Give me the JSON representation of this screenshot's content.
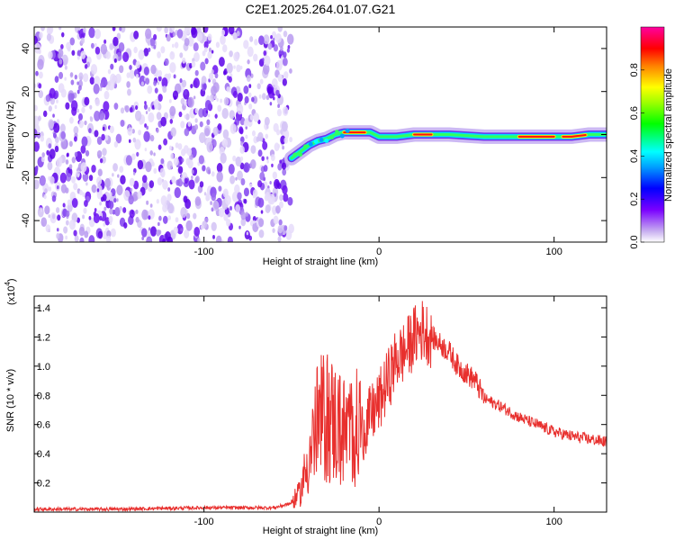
{
  "title": "C2E1.2025.264.01.07.G21",
  "chart_data": [
    {
      "type": "heatmap",
      "xlabel": "Height of straight line (km)",
      "ylabel": "Frequency (Hz)",
      "xlim": [
        -197,
        130
      ],
      "ylim": [
        -50,
        50
      ],
      "xticks": [
        -100,
        0,
        100
      ],
      "xtick_labels": [
        "-100",
        "0",
        "100"
      ],
      "yticks": [
        -40,
        -20,
        0,
        20,
        40
      ],
      "ytick_labels": [
        "-40",
        "-20",
        "0",
        "20",
        "40"
      ],
      "noise_region_x": [
        -197,
        -50
      ],
      "ridge": {
        "x": [
          -50,
          -45,
          -40,
          -35,
          -30,
          -25,
          -20,
          -15,
          -10,
          -5,
          0,
          5,
          10,
          20,
          40,
          60,
          80,
          100,
          110,
          120,
          130
        ],
        "freq": [
          -11,
          -8,
          -5,
          -3,
          -2,
          0,
          1,
          1,
          1,
          1,
          -1,
          -1,
          -1,
          0,
          0,
          -1,
          -1,
          -1,
          -1,
          0,
          0
        ]
      },
      "colorbar": {
        "label": "Normalized spectral amplitude",
        "range": [
          0,
          1
        ],
        "ticks": [
          0.0,
          0.2,
          0.4,
          0.6,
          0.8
        ],
        "tick_labels": [
          "0.0",
          "0.2",
          "0.4",
          "0.6",
          "0.8"
        ],
        "colormap": "rainbow"
      },
      "grid": false
    },
    {
      "type": "line",
      "xlabel": "Height of straight line (km)",
      "ylabel": "SNR (10 * v/v)",
      "y_multiplier_label": "(x10",
      "y_multiplier_exp": "4",
      "y_multiplier_close": ")",
      "xlim": [
        -197,
        130
      ],
      "ylim": [
        0,
        1.48
      ],
      "xticks": [
        -100,
        0,
        100
      ],
      "xtick_labels": [
        "-100",
        "0",
        "100"
      ],
      "yticks": [
        0.2,
        0.4,
        0.6,
        0.8,
        1.0,
        1.2,
        1.4
      ],
      "ytick_labels": [
        "0.2",
        "0.4",
        "0.6",
        "0.8",
        "1.0",
        "1.2",
        "1.4"
      ],
      "series": [
        {
          "color": "#e8302e",
          "x": [
            -197,
            -150,
            -100,
            -60,
            -50,
            -45,
            -40,
            -35,
            -30,
            -25,
            -20,
            -15,
            -10,
            -5,
            0,
            5,
            10,
            15,
            20,
            25,
            30,
            35,
            40,
            45,
            50,
            55,
            60,
            70,
            80,
            90,
            100,
            110,
            120,
            130
          ],
          "y": [
            0.02,
            0.02,
            0.03,
            0.03,
            0.06,
            0.12,
            0.35,
            0.55,
            0.6,
            0.55,
            0.5,
            0.5,
            0.55,
            0.65,
            0.75,
            0.9,
            1.05,
            1.1,
            1.2,
            1.25,
            1.2,
            1.15,
            1.1,
            1.0,
            0.95,
            0.9,
            0.78,
            0.72,
            0.65,
            0.6,
            0.55,
            0.52,
            0.5,
            0.48
          ]
        }
      ],
      "grid": false
    }
  ]
}
